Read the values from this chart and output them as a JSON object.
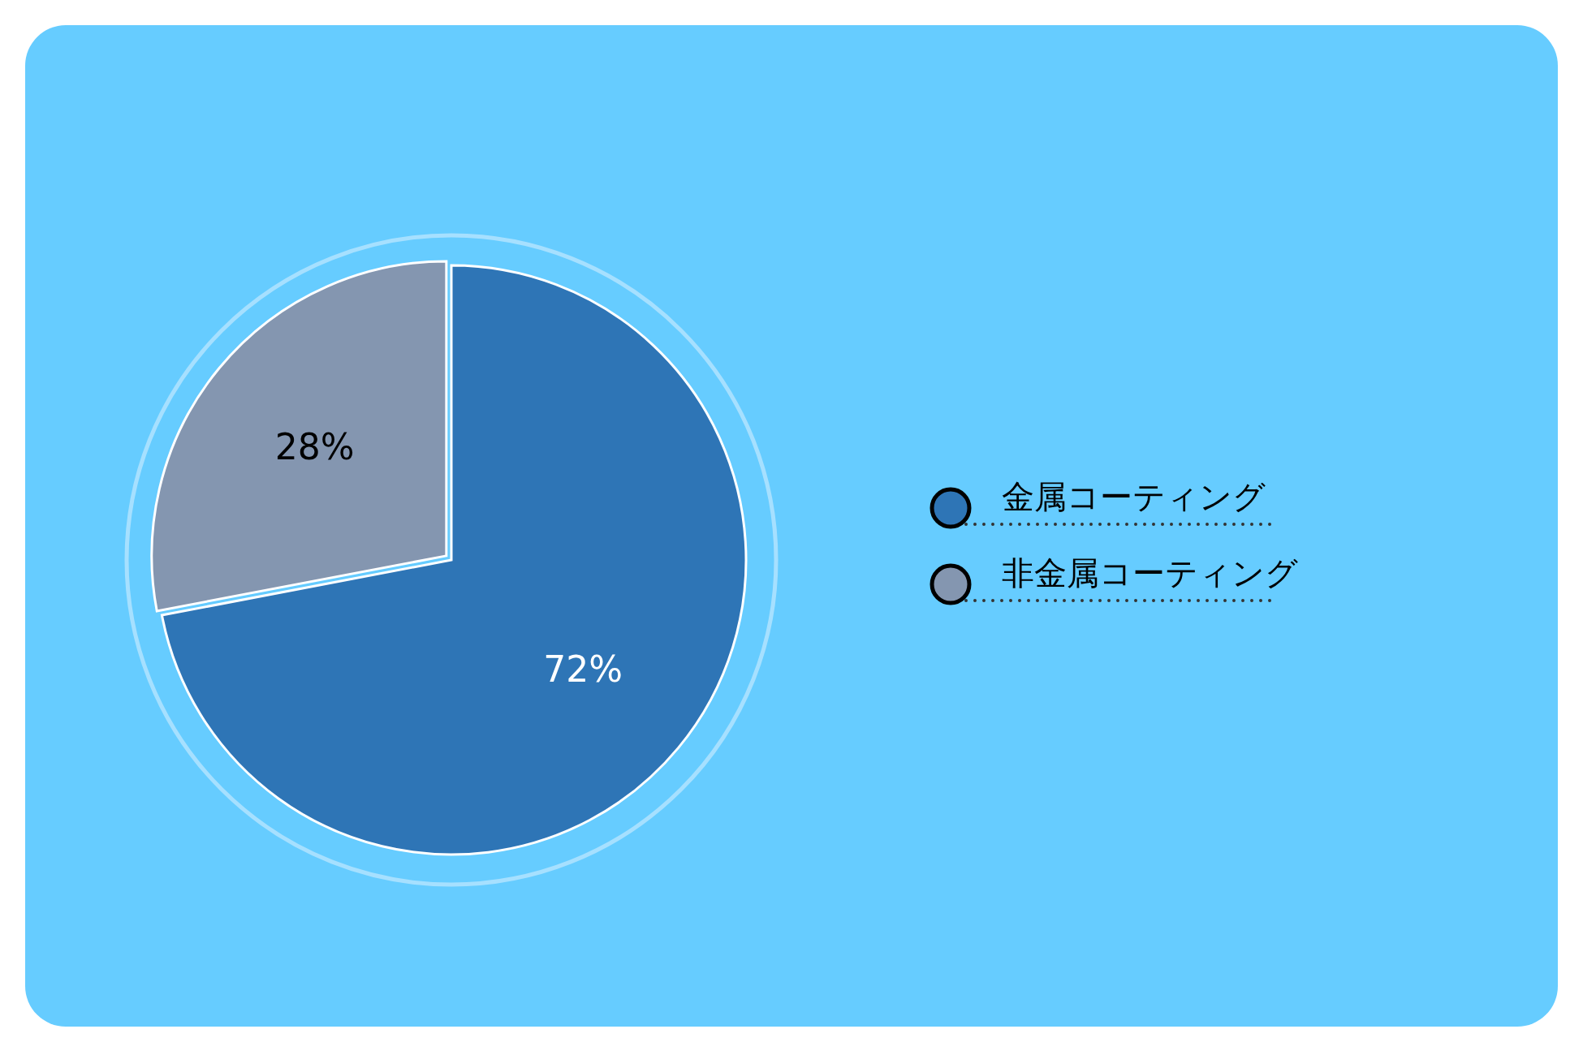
{
  "chart_data": {
    "type": "pie",
    "categories": [
      "金属コーティング",
      "非金属コーティング"
    ],
    "values": [
      72,
      28
    ],
    "colors": [
      "#2e75b6",
      "#8496b0"
    ],
    "value_labels": [
      "72%",
      "28%"
    ],
    "legend": "right"
  }
}
